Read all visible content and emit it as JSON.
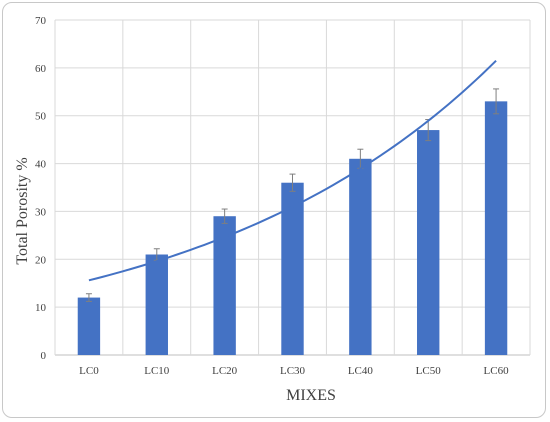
{
  "chart_data": {
    "type": "bar",
    "categories": [
      "LC0",
      "LC10",
      "LC20",
      "LC30",
      "LC40",
      "LC50",
      "LC60"
    ],
    "series": [
      {
        "values": [
          12,
          21,
          29,
          36,
          41,
          47,
          53
        ],
        "error": [
          0.8,
          1.2,
          1.5,
          1.8,
          2.0,
          2.2,
          2.6
        ],
        "color": "#4472c4"
      }
    ],
    "trendline": {
      "type": "exponential",
      "color": "#4472c4",
      "start": 15.6,
      "end": 61.5
    },
    "xlabel": "MIXES",
    "ylabel": "Total Porosity %",
    "ylim": [
      0,
      70
    ],
    "yticks": [
      "0",
      "10",
      "20",
      "30",
      "40",
      "50",
      "60",
      "70"
    ],
    "grid": true,
    "legend": "none"
  }
}
